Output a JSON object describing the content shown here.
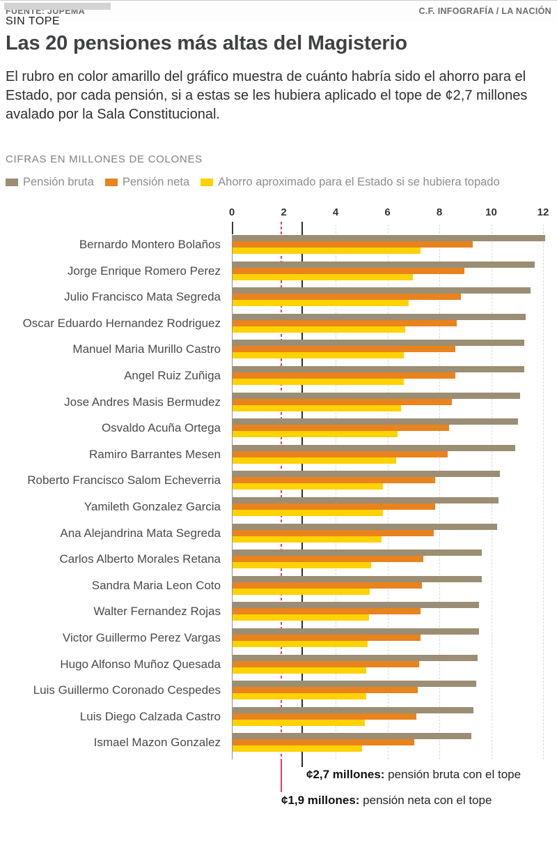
{
  "header": {
    "kicker": "SIN TOPE",
    "title": "Las 20 pensiones más altas del Magisterio",
    "subtitle": "El rubro en color amarillo del gráfico muestra de cuánto habría sido el ahorro para el Estado, por cada pensión, si a estas se les hubiera aplicado el tope de ¢2,7 millones avalado por la Sala Constitucional."
  },
  "units_label": "CIFRAS EN MILLONES DE COLONES",
  "chart_data": {
    "type": "bar",
    "orientation": "horizontal",
    "title": "Las 20 pensiones más altas del Magisterio",
    "xlabel": "millones de colones",
    "x_ticks": [
      0,
      2,
      4,
      6,
      8,
      10,
      12
    ],
    "grid_ticks": [
      4,
      6,
      8,
      10,
      12
    ],
    "xlim": [
      0,
      12.4
    ],
    "legend_position": "top",
    "categories": [
      "Bernardo Montero Bolaños",
      "Jorge Enrique Romero Perez",
      "Julio Francisco Mata Segreda",
      "Oscar Eduardo Hernandez Rodriguez",
      "Manuel Maria Murillo Castro",
      "Angel Ruiz Zuñiga",
      "Jose Andres Masis Bermudez",
      "Osvaldo Acuña Ortega",
      "Ramiro Barrantes Mesen",
      "Roberto Francisco Salom Echeverria",
      "Yamileth Gonzalez Garcia",
      "Ana Alejandrina Mata Segreda",
      "Carlos Alberto Morales Retana",
      "Sandra Maria Leon Coto",
      "Walter Fernandez Rojas",
      "Victor Guillermo Perez Vargas",
      "Hugo Alfonso Muñoz Quesada",
      "Luis Guillermo Coronado Cespedes",
      "Luis Diego Calzada Castro",
      "Ismael Mazon Gonzalez"
    ],
    "series": [
      {
        "name": "Pensión bruta",
        "color": "#9b8e74",
        "values": [
          12.05,
          11.65,
          11.5,
          11.3,
          11.25,
          11.25,
          11.1,
          11.0,
          10.9,
          10.3,
          10.25,
          10.2,
          9.6,
          9.6,
          9.5,
          9.5,
          9.45,
          9.4,
          9.3,
          9.2
        ]
      },
      {
        "name": "Pensión neta",
        "color": "#e8831d",
        "values": [
          9.25,
          8.95,
          8.8,
          8.65,
          8.6,
          8.6,
          8.45,
          8.35,
          8.3,
          7.8,
          7.8,
          7.75,
          7.35,
          7.3,
          7.25,
          7.25,
          7.2,
          7.15,
          7.1,
          7.0
        ]
      },
      {
        "name": "Ahorro aproximado para el Estado si se hubiera topado",
        "color": "#ffd200",
        "values": [
          7.25,
          6.95,
          6.8,
          6.65,
          6.6,
          6.6,
          6.5,
          6.35,
          6.3,
          5.8,
          5.8,
          5.75,
          5.35,
          5.3,
          5.25,
          5.2,
          5.15,
          5.15,
          5.1,
          5.0
        ]
      }
    ],
    "reference_lines": [
      {
        "value": 2.7,
        "color": "#2d2d2d",
        "style": "solid",
        "label_bold": "¢2,7 millones:",
        "label_rest": " pensión bruta con el tope"
      },
      {
        "value": 1.9,
        "color": "#e83a6c",
        "style": "dashed",
        "label_bold": "¢1,9 millones:",
        "label_rest": " pensión neta con el tope"
      }
    ]
  },
  "footer": {
    "source": "FUENTE: JUPEMA",
    "credit": "C.F. INFOGRAFÍA / LA NACIÓN"
  }
}
